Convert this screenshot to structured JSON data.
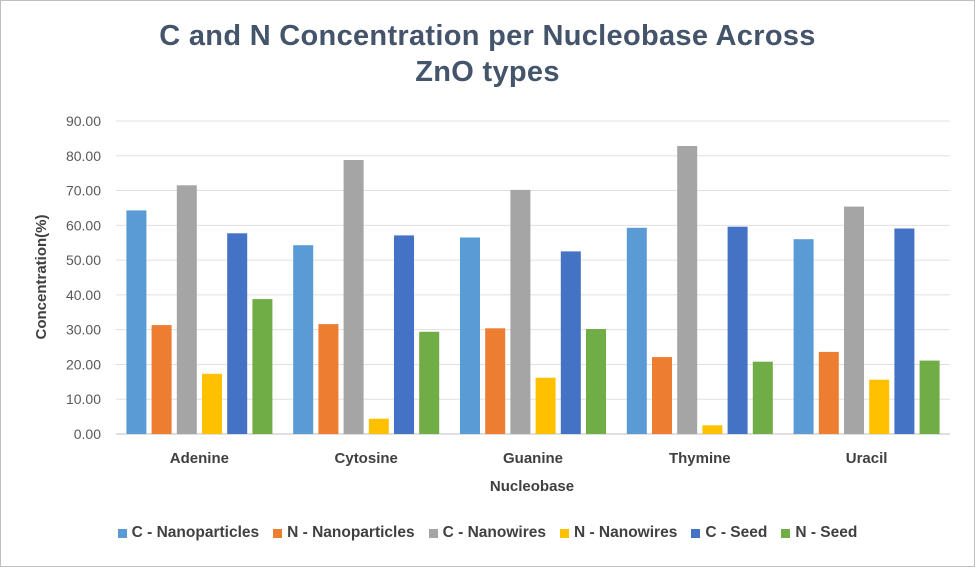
{
  "chart_data": {
    "type": "bar",
    "title": "C and N Concentration per Nucleobase Across ZnO types",
    "title_lines": [
      "C and N Concentration per Nucleobase Across",
      "ZnO types"
    ],
    "xlabel": "Nucleobase",
    "ylabel": "Concentration(%)",
    "ylim": [
      0,
      90
    ],
    "yticks": [
      "0.00",
      "10.00",
      "20.00",
      "30.00",
      "40.00",
      "50.00",
      "60.00",
      "70.00",
      "80.00",
      "90.00"
    ],
    "grid": true,
    "legend_position": "bottom",
    "categories": [
      "Adenine",
      "Cytosine",
      "Guanine",
      "Thymine",
      "Uracil"
    ],
    "series": [
      {
        "name": "C - Nanoparticles",
        "color": "#5b9bd5",
        "values": [
          64.3,
          54.3,
          56.5,
          59.3,
          56.0
        ]
      },
      {
        "name": "N - Nanoparticles",
        "color": "#ed7d31",
        "values": [
          31.3,
          31.6,
          30.4,
          22.1,
          23.6
        ]
      },
      {
        "name": "C - Nanowires",
        "color": "#a5a5a5",
        "values": [
          71.5,
          78.8,
          70.2,
          82.8,
          65.4
        ]
      },
      {
        "name": "N - Nanowires",
        "color": "#ffc000",
        "values": [
          17.3,
          4.4,
          16.2,
          2.5,
          15.6
        ]
      },
      {
        "name": "C - Seed",
        "color": "#4472c4",
        "values": [
          57.7,
          57.1,
          52.5,
          59.6,
          59.1
        ]
      },
      {
        "name": "N - Seed",
        "color": "#70ad47",
        "values": [
          38.8,
          29.4,
          30.2,
          20.8,
          21.1
        ]
      }
    ]
  }
}
